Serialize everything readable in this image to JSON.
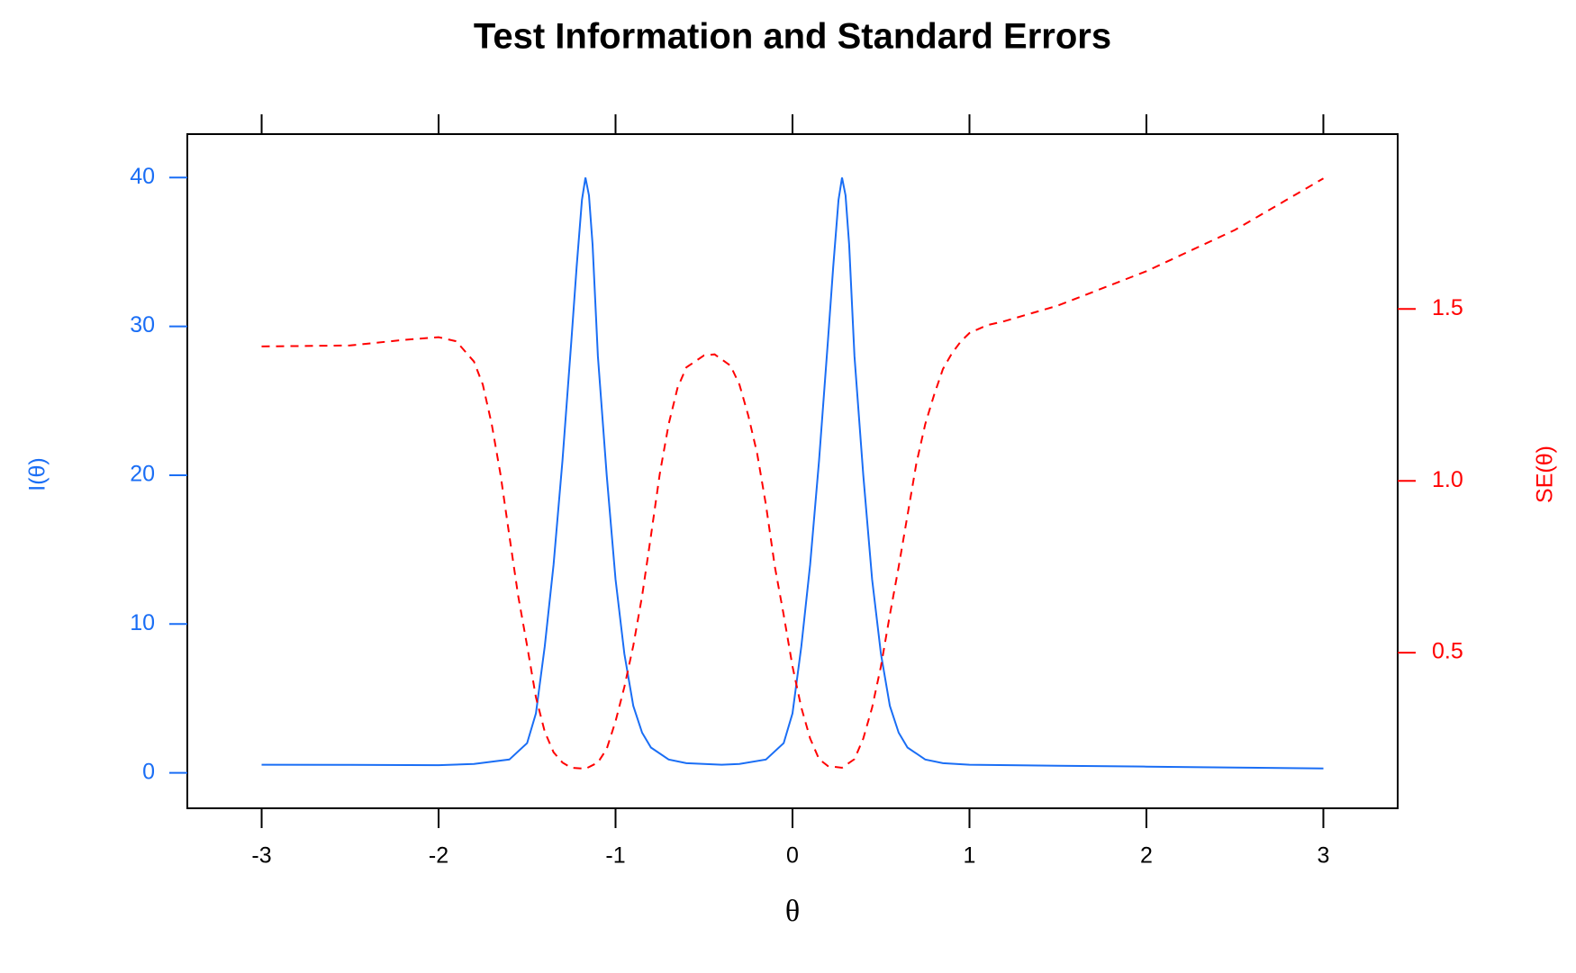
{
  "chart_data": {
    "type": "line",
    "title": "Test Information and Standard Errors",
    "x_label": "θ",
    "y_label": "I(θ)",
    "y2_label": "SE(θ)",
    "xlim": [
      -3.42,
      3.42
    ],
    "xticks": [
      -3,
      -2,
      -1,
      0,
      1,
      2,
      3
    ],
    "ylim": [
      -2.38,
      42.92
    ],
    "yticks": [
      0,
      10,
      20,
      30,
      40
    ],
    "y_color": "#1a6ef5",
    "y2lim": [
      0.047,
      2.009
    ],
    "y2ticks": [
      0.5,
      {
        "value": 1,
        "label": "1.0"
      },
      1.5
    ],
    "y2_color": "#ff0000",
    "series": [
      {
        "color": "#1a6ef5",
        "dash": false,
        "x": [
          -3,
          -2.5,
          -2,
          -1.8,
          -1.7,
          -1.6,
          -1.5,
          -1.45,
          -1.4,
          -1.35,
          -1.3,
          -1.25,
          -1.22,
          -1.19,
          -1.17,
          -1.15,
          -1.13,
          -1.1,
          -1.05,
          -1,
          -0.95,
          -0.9,
          -0.85,
          -0.8,
          -0.7,
          -0.6,
          -0.4,
          -0.3,
          -0.15,
          -0.05,
          0,
          0.05,
          0.1,
          0.15,
          0.2,
          0.23,
          0.26,
          0.28,
          0.3,
          0.32,
          0.35,
          0.4,
          0.45,
          0.5,
          0.55,
          0.6,
          0.65,
          0.75,
          0.85,
          1,
          1.5,
          2,
          2.5,
          3
        ],
        "values": [
          0.55,
          0.54,
          0.52,
          0.6,
          0.75,
          0.9,
          2,
          4,
          8.5,
          14,
          21,
          29,
          34,
          38.5,
          40,
          38.8,
          35.5,
          28,
          20,
          13,
          8,
          4.5,
          2.7,
          1.7,
          0.9,
          0.65,
          0.55,
          0.6,
          0.9,
          2,
          4,
          8.5,
          14,
          21,
          29,
          34,
          38.5,
          40,
          38.8,
          35.5,
          28,
          20,
          13,
          8,
          4.5,
          2.7,
          1.7,
          0.9,
          0.65,
          0.55,
          0.48,
          0.42,
          0.36,
          0.3
        ]
      },
      {
        "color": "#ff0000",
        "dash": true,
        "axis": "y2",
        "x": [
          -3,
          -2.5,
          -2.2,
          -2,
          -1.9,
          -1.8,
          -1.75,
          -1.7,
          -1.65,
          -1.6,
          -1.55,
          -1.5,
          -1.45,
          -1.4,
          -1.35,
          -1.3,
          -1.25,
          -1.17,
          -1.1,
          -1.05,
          -1,
          -0.95,
          -0.9,
          -0.85,
          -0.8,
          -0.75,
          -0.7,
          -0.65,
          -0.6,
          -0.5,
          -0.44,
          -0.35,
          -0.3,
          -0.25,
          -0.2,
          -0.15,
          -0.1,
          -0.05,
          0,
          0.05,
          0.1,
          0.15,
          0.2,
          0.28,
          0.35,
          0.4,
          0.45,
          0.5,
          0.55,
          0.6,
          0.65,
          0.7,
          0.75,
          0.8,
          0.85,
          0.9,
          0.95,
          1,
          1.1,
          1.2,
          1.5,
          2,
          2.5,
          3
        ],
        "values": [
          1.391,
          1.394,
          1.41,
          1.418,
          1.406,
          1.347,
          1.28,
          1.165,
          1.018,
          0.84,
          0.665,
          0.52,
          0.37,
          0.27,
          0.21,
          0.18,
          0.165,
          0.162,
          0.18,
          0.22,
          0.3,
          0.4,
          0.52,
          0.665,
          0.84,
          1.02,
          1.165,
          1.27,
          1.33,
          1.365,
          1.368,
          1.335,
          1.28,
          1.19,
          1.08,
          0.93,
          0.75,
          0.61,
          0.46,
          0.34,
          0.25,
          0.19,
          0.17,
          0.165,
          0.19,
          0.25,
          0.34,
          0.46,
          0.61,
          0.75,
          0.9,
          1.05,
          1.165,
          1.25,
          1.325,
          1.37,
          1.405,
          1.43,
          1.453,
          1.465,
          1.51,
          1.61,
          1.73,
          1.88
        ]
      }
    ]
  }
}
